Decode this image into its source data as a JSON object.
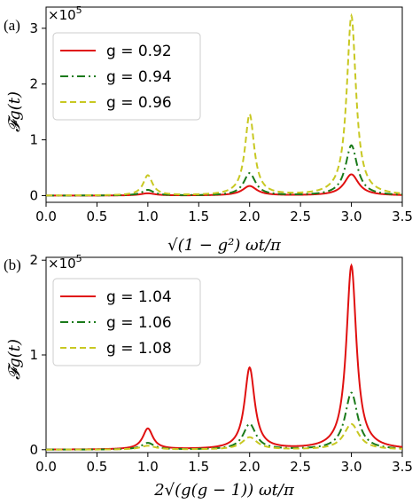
{
  "chart_data": [
    {
      "type": "line",
      "panel": "(a)",
      "ylabel": "𝓕g(t)",
      "xlabel": "√(1 − g²) ωt/π",
      "multiplier": "×10",
      "multiplier_exp": "5",
      "xlim": [
        0,
        3.5
      ],
      "ylim": [
        -0.12,
        3.38
      ],
      "xticks": [
        "0.0",
        "0.5",
        "1.0",
        "1.5",
        "2.0",
        "2.5",
        "3.0",
        "3.5"
      ],
      "yticks": [
        "0",
        "1",
        "2",
        "3"
      ],
      "legend_position": "upper-left",
      "series": [
        {
          "name": "g = 0.92",
          "color": "#e01010",
          "dash": "solid",
          "peaks": [
            0.04,
            0.17,
            0.38
          ],
          "floor": 0.0,
          "width": 0.085
        },
        {
          "name": "g = 0.94",
          "color": "#1a7a1a",
          "dash": "dashdot",
          "peaks": [
            0.1,
            0.4,
            0.9
          ],
          "floor": 0.0,
          "width": 0.07
        },
        {
          "name": "g = 0.96",
          "color": "#c8c822",
          "dash": "dashed",
          "peaks": [
            0.36,
            1.45,
            3.22
          ],
          "floor": 0.0,
          "width": 0.055
        }
      ]
    },
    {
      "type": "line",
      "panel": "(b)",
      "ylabel": "𝓕g(t)",
      "xlabel": "2√(g(g − 1)) ωt/π",
      "multiplier": "×10",
      "multiplier_exp": "5",
      "xlim": [
        0,
        3.5
      ],
      "ylim": [
        -0.03,
        2.03
      ],
      "xticks": [
        "0.0",
        "0.5",
        "1.0",
        "1.5",
        "2.0",
        "2.5",
        "3.0",
        "3.5"
      ],
      "yticks": [
        "0",
        "1",
        "2"
      ],
      "legend_position": "upper-left",
      "series": [
        {
          "name": "g = 1.04",
          "color": "#e01010",
          "dash": "solid",
          "peaks": [
            0.22,
            0.86,
            1.94
          ],
          "floor": 0.0,
          "width": 0.06
        },
        {
          "name": "g = 1.06",
          "color": "#1a7a1a",
          "dash": "dashdot",
          "peaks": [
            0.07,
            0.27,
            0.6
          ],
          "floor": 0.0,
          "width": 0.075
        },
        {
          "name": "g = 1.08",
          "color": "#c8c822",
          "dash": "dashed",
          "peaks": [
            0.04,
            0.13,
            0.27
          ],
          "floor": 0.0,
          "width": 0.09
        }
      ]
    }
  ]
}
